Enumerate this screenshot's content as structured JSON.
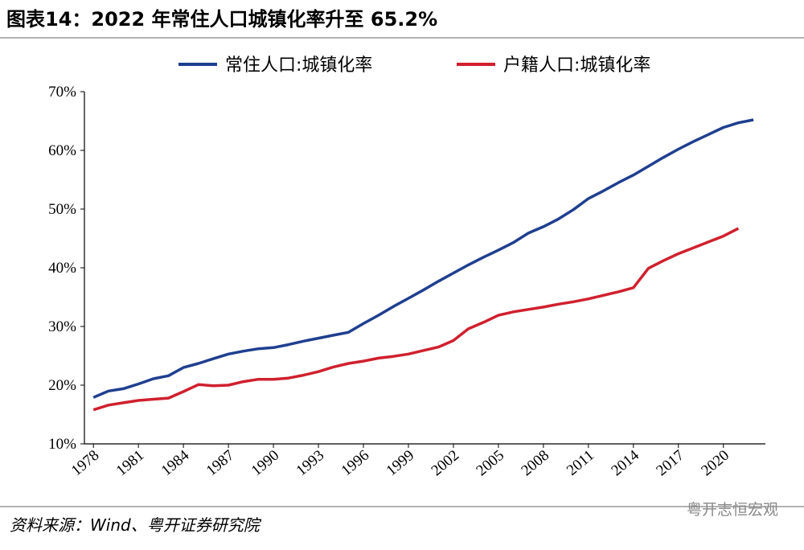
{
  "chart_data": {
    "type": "line",
    "title": "图表14：2022 年常住人口城镇化率升至 65.2%",
    "source": "资料来源：Wind、粤开证券研究院",
    "watermark": "粤开志恒宏观",
    "x": [
      1978,
      1979,
      1980,
      1981,
      1982,
      1983,
      1984,
      1985,
      1986,
      1987,
      1988,
      1989,
      1990,
      1991,
      1992,
      1993,
      1994,
      1995,
      1996,
      1997,
      1998,
      1999,
      2000,
      2001,
      2002,
      2003,
      2004,
      2005,
      2006,
      2007,
      2008,
      2009,
      2010,
      2011,
      2012,
      2013,
      2014,
      2015,
      2016,
      2017,
      2018,
      2019,
      2020,
      2021,
      2022
    ],
    "series": [
      {
        "name": "常住人口:城镇化率",
        "color": "#1f3f8f",
        "values": [
          17.9,
          19.0,
          19.4,
          20.2,
          21.1,
          21.6,
          23.0,
          23.7,
          24.5,
          25.3,
          25.8,
          26.2,
          26.4,
          26.9,
          27.5,
          28.0,
          28.5,
          29.0,
          30.5,
          31.9,
          33.4,
          34.8,
          36.2,
          37.7,
          39.1,
          40.5,
          41.8,
          43.0,
          44.3,
          45.9,
          47.0,
          48.3,
          49.9,
          51.8,
          53.1,
          54.5,
          55.8,
          57.3,
          58.8,
          60.2,
          61.5,
          62.7,
          63.9,
          64.7,
          65.2
        ]
      },
      {
        "name": "户籍人口:城镇化率",
        "color": "#d0202e",
        "values": [
          15.8,
          16.6,
          17.0,
          17.4,
          17.6,
          17.8,
          18.9,
          20.1,
          19.9,
          20.0,
          20.6,
          21.0,
          21.0,
          21.2,
          21.7,
          22.3,
          23.1,
          23.7,
          24.1,
          24.6,
          24.9,
          25.3,
          25.9,
          26.5,
          27.6,
          29.6,
          30.7,
          31.9,
          32.5,
          32.9,
          33.3,
          33.8,
          34.2,
          34.7,
          35.3,
          35.9,
          36.6,
          39.9,
          41.2,
          42.4,
          43.4,
          44.4,
          45.4,
          46.7,
          null
        ]
      }
    ],
    "xlim": [
      1977.4,
      2022.8
    ],
    "xticks": [
      1978,
      1981,
      1984,
      1987,
      1990,
      1993,
      1996,
      1999,
      2002,
      2005,
      2008,
      2011,
      2014,
      2017,
      2020
    ],
    "ylim": [
      10,
      70
    ],
    "yticks": [
      {
        "value": 10,
        "label": "10%"
      },
      {
        "value": 20,
        "label": "20%"
      },
      {
        "value": 30,
        "label": "30%"
      },
      {
        "value": 40,
        "label": "40%"
      },
      {
        "value": 50,
        "label": "50%"
      },
      {
        "value": 60,
        "label": "60%"
      },
      {
        "value": 70,
        "label": "70%"
      }
    ]
  }
}
